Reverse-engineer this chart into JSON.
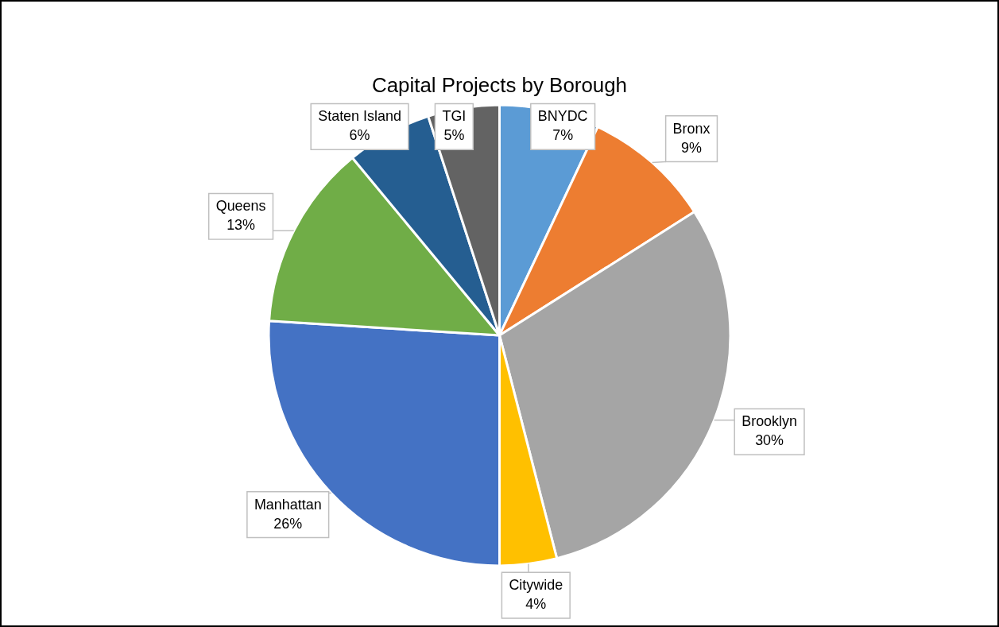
{
  "chart_data": {
    "type": "pie",
    "title": "Capital Projects by Borough",
    "categories": [
      "BNYDC",
      "Bronx",
      "Brooklyn",
      "Citywide",
      "Manhattan",
      "Queens",
      "Staten Island",
      "TGI"
    ],
    "values": [
      7,
      9,
      30,
      4,
      26,
      13,
      6,
      5
    ],
    "colors": [
      "#5b9bd5",
      "#ed7d31",
      "#a5a5a5",
      "#ffc000",
      "#4472c4",
      "#70ad47",
      "#255e91",
      "#636363"
    ],
    "value_labels": [
      "7%",
      "9%",
      "30%",
      "4%",
      "26%",
      "13%",
      "6%",
      "5%"
    ],
    "legend": false
  }
}
